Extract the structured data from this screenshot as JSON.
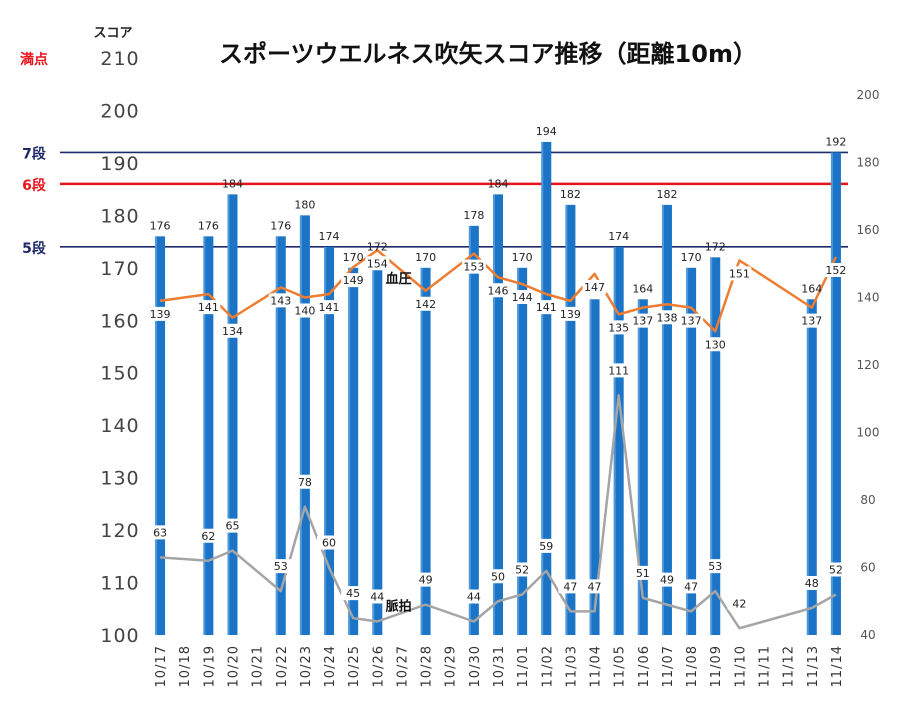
{
  "chart_data": {
    "type": "bar",
    "title": "スポーツウエルネス吹矢スコア推移（距離10m）",
    "ylabel": "スコア",
    "ylim": [
      100,
      210
    ],
    "y_ticks": [
      100,
      110,
      120,
      130,
      140,
      150,
      160,
      170,
      180,
      190,
      200,
      210
    ],
    "y2lim": [
      40,
      200
    ],
    "y2_ticks": [
      40,
      60,
      80,
      100,
      120,
      140,
      160,
      180,
      200
    ],
    "grid": false,
    "categories": [
      "10/17",
      "10/18",
      "10/19",
      "10/20",
      "10/21",
      "10/22",
      "10/23",
      "10/24",
      "10/25",
      "10/26",
      "10/27",
      "10/28",
      "10/29",
      "10/30",
      "10/31",
      "11/01",
      "11/02",
      "11/03",
      "11/04",
      "11/05",
      "11/06",
      "11/07",
      "11/08",
      "11/09",
      "11/10",
      "11/11",
      "11/12",
      "11/13",
      "11/14"
    ],
    "series": [
      {
        "kind": "bar",
        "axis": "left",
        "color": "#1c74c6",
        "values": [
          176,
          null,
          176,
          184,
          null,
          176,
          180,
          174,
          170,
          172,
          null,
          170,
          null,
          178,
          184,
          170,
          194,
          182,
          164,
          174,
          164,
          182,
          170,
          172,
          null,
          null,
          null,
          164,
          192
        ]
      },
      {
        "kind": "line",
        "axis": "right",
        "name": "血圧",
        "color": "#ed7d31",
        "values": [
          139,
          null,
          141,
          134,
          null,
          143,
          140,
          141,
          149,
          154,
          null,
          142,
          null,
          153,
          146,
          144,
          141,
          139,
          147,
          135,
          137,
          138,
          137,
          130,
          151,
          null,
          null,
          137,
          152
        ]
      },
      {
        "kind": "line",
        "axis": "right",
        "name": "脈拍",
        "color": "#a5a5a5",
        "values": [
          63,
          null,
          62,
          65,
          null,
          53,
          78,
          60,
          45,
          44,
          null,
          49,
          null,
          44,
          50,
          52,
          59,
          47,
          47,
          111,
          51,
          49,
          47,
          53,
          42,
          null,
          null,
          48,
          52
        ]
      }
    ],
    "reference_lines": [
      {
        "label": "満点",
        "value": 210,
        "color": "#e8141c",
        "line": false
      },
      {
        "label": "7段",
        "value": 192,
        "color": "#1f2a6b",
        "line": true
      },
      {
        "label": "6段",
        "value": 186,
        "color": "#e8141c",
        "line": true
      },
      {
        "label": "5段",
        "value": 174,
        "color": "#1f2a6b",
        "line": true
      }
    ]
  }
}
